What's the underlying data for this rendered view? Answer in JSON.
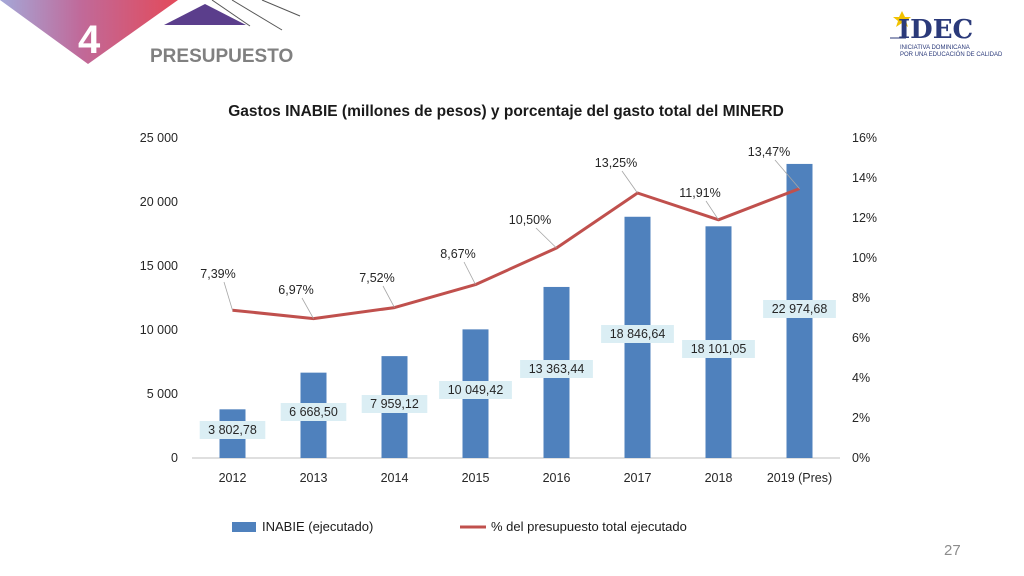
{
  "slide": {
    "section_number": "4",
    "section_title": "PRESUPUESTO",
    "page_number": "27",
    "logo_name": "IDEC",
    "logo_sub_lines": [
      "INICIATIVA DOMINICANA",
      "POR UNA EDUCACIÓN DE CALIDAD"
    ]
  },
  "chart_data": {
    "type": "bar",
    "title": "Gastos INABIE (millones de pesos) y porcentaje del gasto total del MINERD",
    "categories": [
      "2012",
      "2013",
      "2014",
      "2015",
      "2016",
      "2017",
      "2018",
      "2019 (Pres)"
    ],
    "series": [
      {
        "name": "INABIE (ejecutado)",
        "type": "bar",
        "axis": "left",
        "color": "#4f81bd",
        "values": [
          3802.78,
          6668.5,
          7959.12,
          10049.42,
          13363.44,
          18846.64,
          18101.05,
          22974.68
        ],
        "labels": [
          "3 802,78",
          "6 668,50",
          "7 959,12",
          "10 049,42",
          "13 363,44",
          "18 846,64",
          "18 101,05",
          "22 974,68"
        ]
      },
      {
        "name": "% del presupuesto total ejecutado",
        "type": "line",
        "axis": "right",
        "color": "#c0504d",
        "values": [
          7.39,
          6.97,
          7.52,
          8.67,
          10.5,
          13.25,
          11.91,
          13.47
        ],
        "labels": [
          "7,39%",
          "6,97%",
          "7,52%",
          "8,67%",
          "10,50%",
          "13,25%",
          "11,91%",
          "13,47%"
        ]
      }
    ],
    "y_left": {
      "min": 0,
      "max": 25000,
      "ticks": [
        0,
        5000,
        10000,
        15000,
        20000,
        25000
      ],
      "tick_labels": [
        "0",
        "5 000",
        "10 000",
        "15 000",
        "20 000",
        "25 000"
      ]
    },
    "y_right": {
      "min": 0,
      "max": 16,
      "ticks": [
        0,
        2,
        4,
        6,
        8,
        10,
        12,
        14,
        16
      ],
      "tick_labels": [
        "0%",
        "2%",
        "4%",
        "6%",
        "8%",
        "10%",
        "12%",
        "14%",
        "16%"
      ]
    },
    "grid": false,
    "legend_position": "bottom"
  }
}
